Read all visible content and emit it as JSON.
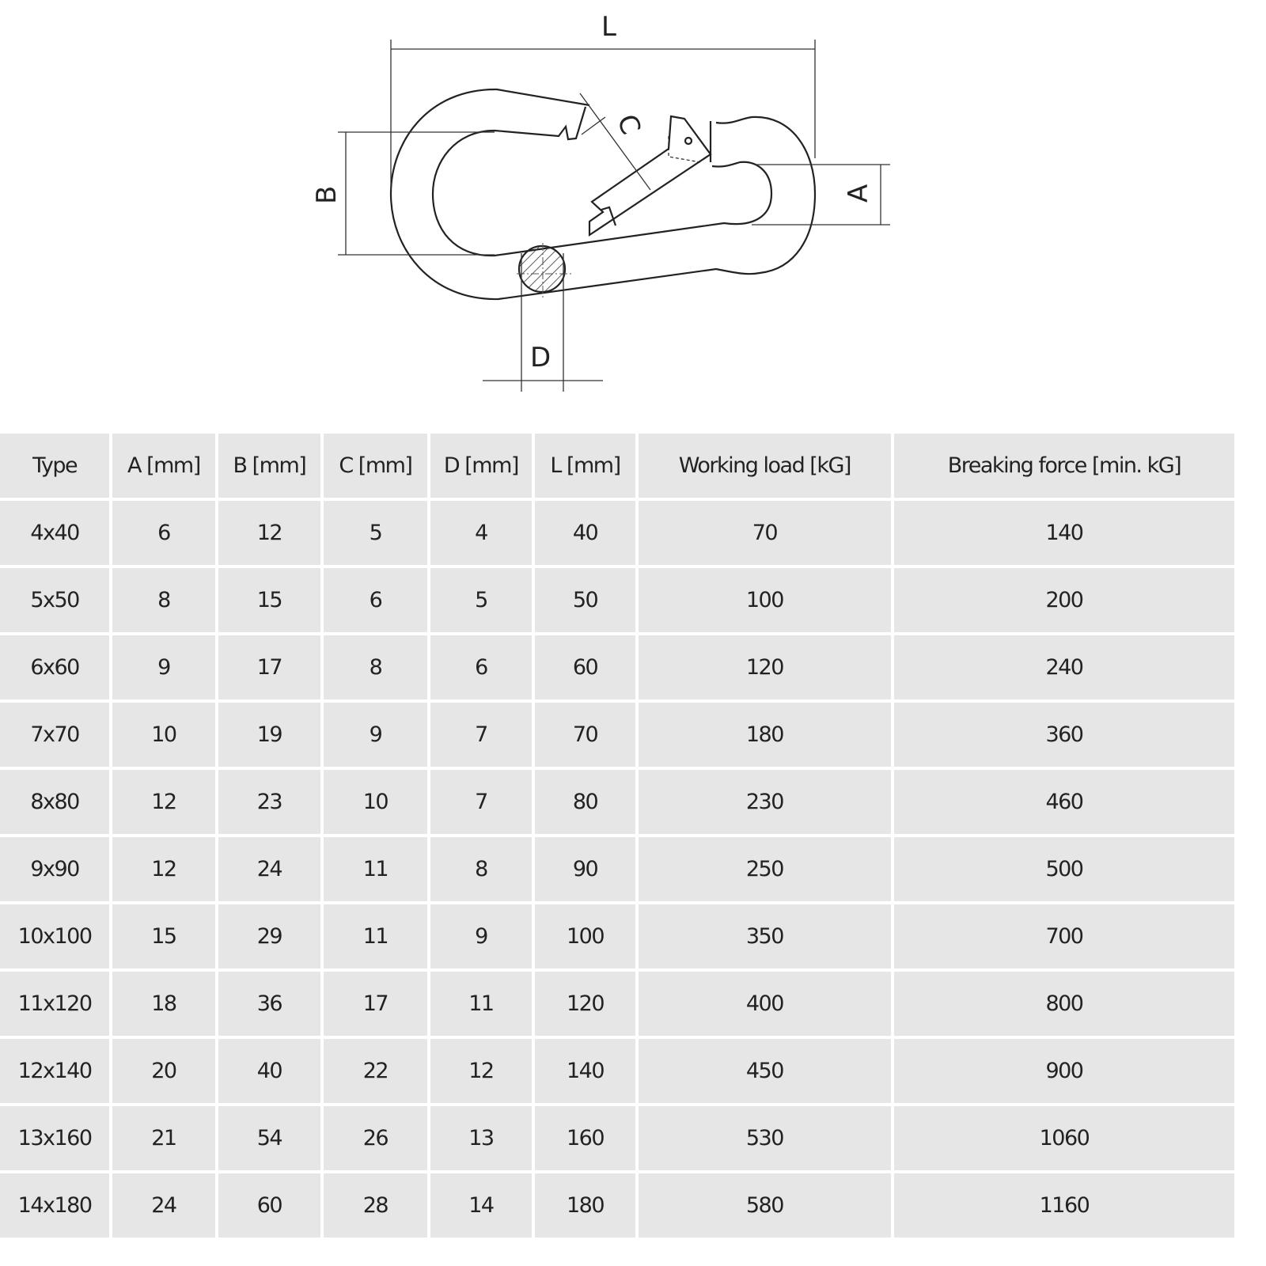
{
  "diagram": {
    "labels": {
      "L": "L",
      "B": "B",
      "A": "A",
      "C": "C",
      "D": "D"
    }
  },
  "table": {
    "headers": [
      "Type",
      "A [mm]",
      "B [mm]",
      "C [mm]",
      "D [mm]",
      "L [mm]",
      "Working load [kG]",
      "Breaking force [min. kG]"
    ],
    "rows": [
      [
        "4x40",
        "6",
        "12",
        "5",
        "4",
        "40",
        "70",
        "140"
      ],
      [
        "5x50",
        "8",
        "15",
        "6",
        "5",
        "50",
        "100",
        "200"
      ],
      [
        "6x60",
        "9",
        "17",
        "8",
        "6",
        "60",
        "120",
        "240"
      ],
      [
        "7x70",
        "10",
        "19",
        "9",
        "7",
        "70",
        "180",
        "360"
      ],
      [
        "8x80",
        "12",
        "23",
        "10",
        "7",
        "80",
        "230",
        "460"
      ],
      [
        "9x90",
        "12",
        "24",
        "11",
        "8",
        "90",
        "250",
        "500"
      ],
      [
        "10x100",
        "15",
        "29",
        "11",
        "9",
        "100",
        "350",
        "700"
      ],
      [
        "11x120",
        "18",
        "36",
        "17",
        "11",
        "120",
        "400",
        "800"
      ],
      [
        "12x140",
        "20",
        "40",
        "22",
        "12",
        "140",
        "450",
        "900"
      ],
      [
        "13x160",
        "21",
        "54",
        "26",
        "13",
        "160",
        "530",
        "1060"
      ],
      [
        "14x180",
        "24",
        "60",
        "28",
        "14",
        "180",
        "580",
        "1160"
      ]
    ]
  },
  "colors": {
    "cell_background": "#e6e6e6",
    "grid_lines": "#ffffff",
    "line_drawing": "#222222"
  }
}
